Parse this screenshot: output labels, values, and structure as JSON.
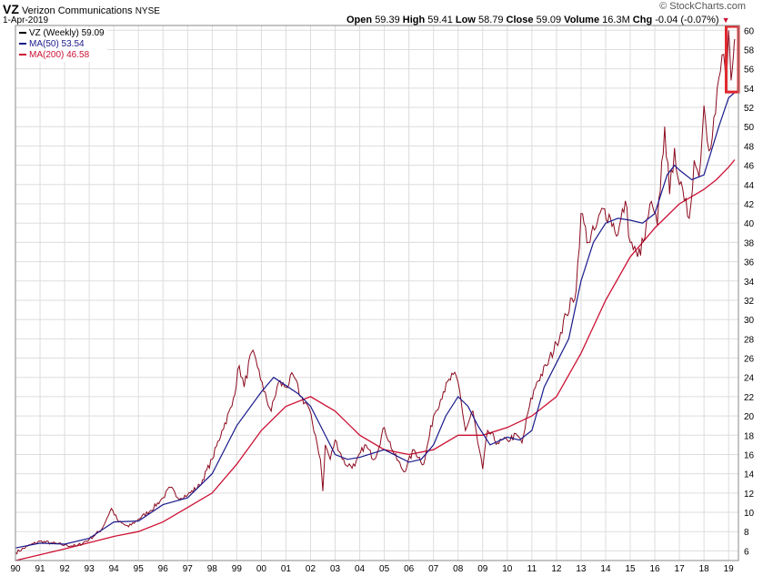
{
  "header": {
    "symbol": "VZ",
    "company": "Verizon Communications",
    "exchange": "NYSE",
    "date": "1-Apr-2019",
    "brand": "© StockCharts.com",
    "open_label": "Open",
    "open": "59.39",
    "high_label": "High",
    "high": "59.41",
    "low_label": "Low",
    "low": "58.79",
    "close_label": "Close",
    "close": "59.09",
    "volume_label": "Volume",
    "volume": "16.3M",
    "chg_label": "Chg",
    "chg": "-0.04 (-0.07%)"
  },
  "legend": [
    {
      "label": "VZ (Weekly) 59.09",
      "color": "#000000"
    },
    {
      "label": "MA(50) 53.54",
      "color": "#1a1a8c"
    },
    {
      "label": "MA(200) 46.58",
      "color": "#cc1133"
    }
  ],
  "colors": {
    "price": "#8b0a1e",
    "ma50": "#1a1a8c",
    "ma200": "#cc1133",
    "grid": "#dddddd",
    "highlight": "#e0282e"
  },
  "chart_data": {
    "type": "line",
    "title": "VZ Verizon Communications NYSE",
    "xlabel": "",
    "ylabel": "",
    "xlim": [
      1990,
      2019.4
    ],
    "ylim": [
      5,
      60.5
    ],
    "x_ticks": [
      "90",
      "91",
      "92",
      "93",
      "94",
      "95",
      "96",
      "97",
      "98",
      "99",
      "00",
      "01",
      "02",
      "03",
      "04",
      "05",
      "06",
      "07",
      "08",
      "09",
      "10",
      "11",
      "12",
      "13",
      "14",
      "15",
      "16",
      "17",
      "18",
      "19"
    ],
    "y_ticks": [
      6,
      8,
      10,
      12,
      14,
      16,
      18,
      20,
      22,
      24,
      26,
      28,
      30,
      32,
      34,
      36,
      38,
      40,
      42,
      44,
      46,
      48,
      50,
      52,
      54,
      56,
      58,
      60
    ],
    "highlight_box": {
      "x": [
        2018.9,
        2019.4
      ],
      "y": [
        53.6,
        60.4
      ]
    },
    "series": [
      {
        "name": "VZ (Weekly)",
        "x": [
          1990.0,
          1990.5,
          1991.0,
          1991.5,
          1992.0,
          1992.5,
          1993.0,
          1993.5,
          1993.9,
          1994.2,
          1994.6,
          1995.0,
          1995.5,
          1996.0,
          1996.3,
          1996.6,
          1997.0,
          1997.5,
          1998.0,
          1998.4,
          1998.8,
          1999.1,
          1999.3,
          1999.6,
          1999.9,
          2000.1,
          2000.4,
          2000.7,
          2001.0,
          2001.3,
          2001.6,
          2001.9,
          2002.2,
          2002.4,
          2002.5,
          2002.6,
          2002.8,
          2003.0,
          2003.4,
          2003.8,
          2004.2,
          2004.6,
          2005.0,
          2005.4,
          2005.8,
          2006.2,
          2006.6,
          2007.0,
          2007.4,
          2007.8,
          2008.0,
          2008.3,
          2008.6,
          2008.8,
          2009.0,
          2009.2,
          2009.6,
          2010.0,
          2010.4,
          2010.6,
          2010.9,
          2011.2,
          2011.6,
          2012.0,
          2012.4,
          2012.8,
          2013.0,
          2013.3,
          2013.6,
          2013.9,
          2014.2,
          2014.5,
          2014.8,
          2015.0,
          2015.3,
          2015.6,
          2015.8,
          2016.1,
          2016.4,
          2016.6,
          2016.8,
          2017.0,
          2017.2,
          2017.4,
          2017.6,
          2017.8,
          2018.0,
          2018.2,
          2018.4,
          2018.6,
          2018.8,
          2018.9,
          2019.0,
          2019.1,
          2019.2,
          2019.25
        ],
        "y": [
          5.8,
          6.5,
          7.0,
          6.8,
          6.6,
          6.5,
          7.2,
          8.2,
          10.4,
          9.0,
          8.5,
          9.3,
          10.2,
          11.5,
          12.6,
          11.5,
          11.8,
          12.8,
          15.5,
          18.5,
          21.0,
          25.2,
          23.0,
          26.6,
          24.8,
          22.5,
          20.5,
          23.5,
          23.0,
          24.2,
          22.0,
          21.0,
          18.0,
          15.5,
          12.2,
          17.0,
          15.5,
          17.5,
          15.0,
          14.8,
          17.0,
          15.5,
          18.8,
          16.0,
          14.2,
          16.5,
          15.0,
          20.0,
          22.5,
          24.3,
          23.5,
          18.5,
          20.5,
          17.2,
          14.5,
          18.5,
          17.2,
          17.5,
          18.0,
          17.2,
          21.0,
          23.5,
          25.2,
          27.5,
          30.5,
          33.0,
          41.0,
          38.0,
          39.5,
          41.5,
          40.5,
          38.8,
          42.3,
          38.0,
          36.5,
          38.5,
          42.0,
          39.8,
          50.0,
          43.0,
          47.8,
          44.0,
          42.3,
          40.5,
          46.5,
          44.8,
          52.2,
          47.5,
          51.0,
          55.0,
          57.5,
          53.8,
          60.0,
          54.8,
          57.5,
          59.09
        ]
      },
      {
        "name": "MA(50)",
        "x": [
          1990.0,
          1991.0,
          1992.0,
          1993.0,
          1994.0,
          1995.0,
          1996.0,
          1997.0,
          1998.0,
          1999.0,
          2000.0,
          2000.5,
          2001.5,
          2002.0,
          2002.5,
          2003.0,
          2003.5,
          2004.0,
          2005.0,
          2006.0,
          2006.5,
          2007.0,
          2007.5,
          2008.0,
          2008.4,
          2008.8,
          2009.3,
          2010.0,
          2010.5,
          2011.0,
          2011.5,
          2012.0,
          2012.5,
          2013.0,
          2013.5,
          2014.0,
          2014.5,
          2015.0,
          2015.5,
          2016.0,
          2016.5,
          2016.8,
          2017.0,
          2017.5,
          2018.0,
          2018.3,
          2018.6,
          2019.0,
          2019.25
        ],
        "y": [
          6.3,
          6.8,
          6.7,
          7.3,
          9.0,
          9.1,
          10.8,
          11.5,
          14.0,
          19.0,
          22.5,
          24.0,
          22.3,
          21.0,
          18.5,
          16.0,
          15.5,
          15.7,
          16.5,
          15.2,
          15.5,
          17.0,
          20.0,
          22.0,
          21.0,
          19.0,
          17.0,
          17.8,
          17.5,
          18.5,
          23.0,
          25.5,
          28.0,
          34.0,
          38.0,
          40.0,
          40.5,
          40.3,
          40.0,
          41.0,
          45.0,
          46.0,
          45.5,
          44.5,
          45.0,
          47.5,
          50.0,
          53.0,
          53.54
        ]
      },
      {
        "name": "MA(200)",
        "x": [
          1990.0,
          1992.0,
          1994.0,
          1995.0,
          1996.0,
          1997.0,
          1998.0,
          1999.0,
          2000.0,
          2001.0,
          2002.0,
          2003.0,
          2004.0,
          2005.0,
          2006.0,
          2007.0,
          2008.0,
          2009.0,
          2010.0,
          2011.0,
          2012.0,
          2013.0,
          2014.0,
          2015.0,
          2016.0,
          2017.0,
          2018.0,
          2018.5,
          2019.0,
          2019.25
        ],
        "y": [
          5.0,
          6.2,
          7.5,
          8.0,
          9.0,
          10.5,
          12.0,
          15.0,
          18.5,
          21.0,
          22.0,
          20.5,
          18.0,
          16.5,
          16.0,
          16.5,
          18.0,
          18.0,
          18.8,
          20.0,
          22.0,
          26.5,
          32.0,
          36.5,
          39.5,
          42.0,
          43.5,
          44.5,
          45.8,
          46.58
        ]
      }
    ]
  }
}
